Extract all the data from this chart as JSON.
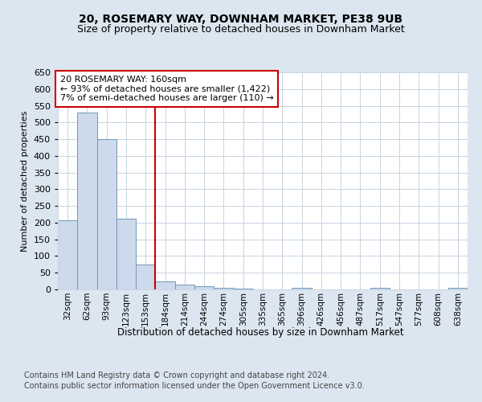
{
  "title1": "20, ROSEMARY WAY, DOWNHAM MARKET, PE38 9UB",
  "title2": "Size of property relative to detached houses in Downham Market",
  "xlabel": "Distribution of detached houses by size in Downham Market",
  "ylabel": "Number of detached properties",
  "footer1": "Contains HM Land Registry data © Crown copyright and database right 2024.",
  "footer2": "Contains public sector information licensed under the Open Government Licence v3.0.",
  "annotation_line1": "20 ROSEMARY WAY: 160sqm",
  "annotation_line2": "← 93% of detached houses are smaller (1,422)",
  "annotation_line3": "7% of semi-detached houses are larger (110) →",
  "categories": [
    "32sqm",
    "62sqm",
    "93sqm",
    "123sqm",
    "153sqm",
    "184sqm",
    "214sqm",
    "244sqm",
    "274sqm",
    "305sqm",
    "335sqm",
    "365sqm",
    "396sqm",
    "426sqm",
    "456sqm",
    "487sqm",
    "517sqm",
    "547sqm",
    "577sqm",
    "608sqm",
    "638sqm"
  ],
  "values": [
    208,
    530,
    450,
    212,
    75,
    25,
    14,
    10,
    5,
    2,
    1,
    0,
    5,
    0,
    0,
    0,
    4,
    0,
    0,
    0,
    4
  ],
  "bar_color": "#cddaeb",
  "bar_edge_color": "#7098b8",
  "red_line_index": 4.5,
  "ylim": [
    0,
    650
  ],
  "yticks": [
    0,
    50,
    100,
    150,
    200,
    250,
    300,
    350,
    400,
    450,
    500,
    550,
    600,
    650
  ],
  "bg_color": "#dce6f0",
  "plot_bg_color": "#ffffff",
  "annotation_box_color": "#ffffff",
  "annotation_box_edge": "#cc0000",
  "red_line_color": "#cc0000",
  "title1_fontsize": 10,
  "title2_fontsize": 9,
  "annotation_fontsize": 8,
  "footer_fontsize": 7,
  "ylabel_fontsize": 8,
  "xlabel_fontsize": 8.5
}
